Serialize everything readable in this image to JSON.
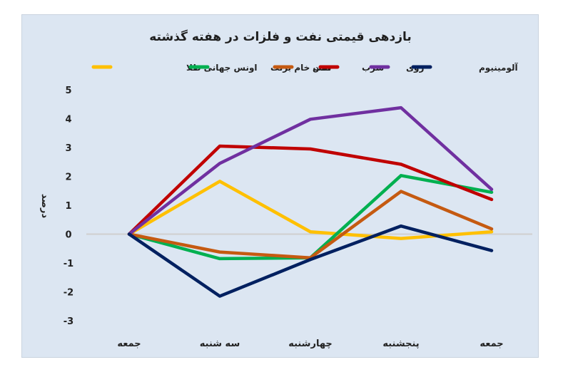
{
  "chart_data": {
    "type": "line",
    "title": "بازدهی قیمتی نفت و فلزات در هفته گذشته",
    "ylabel": "درصد",
    "xlabel": "",
    "categories": [
      "جمعه",
      "سه شنبه",
      "چهارشنبه",
      "پنجشنبه",
      "جمعه"
    ],
    "ylim": [
      -3,
      5
    ],
    "yticks": [
      {
        "value": 5,
        "label": "5"
      },
      {
        "value": 4,
        "label": "4"
      },
      {
        "value": 3,
        "label": "3"
      },
      {
        "value": 2,
        "label": "2"
      },
      {
        "value": 1,
        "label": "1"
      },
      {
        "value": 0,
        "label": "0"
      },
      {
        "value": -1,
        "label": "-1"
      },
      {
        "value": -2,
        "label": "-2"
      },
      {
        "value": -3,
        "label": "-3"
      }
    ],
    "legend_position": "top",
    "grid": false,
    "series": [
      {
        "name": "اونس جهانی طلا",
        "color": "#ffc000",
        "values": [
          0,
          1.83,
          0.08,
          -0.15,
          0.08
        ]
      },
      {
        "name": "نفت خام برنت",
        "color": "#00b050",
        "values": [
          0,
          -0.85,
          -0.82,
          2.03,
          1.45
        ]
      },
      {
        "name": "مس",
        "color": "#c55a11",
        "values": [
          0,
          -0.62,
          -0.82,
          1.48,
          0.18
        ]
      },
      {
        "name": "سرب",
        "color": "#c00000",
        "values": [
          0,
          3.05,
          2.95,
          2.42,
          1.2
        ]
      },
      {
        "name": "روی",
        "color": "#7030a0",
        "values": [
          0,
          2.45,
          3.98,
          4.38,
          1.55
        ]
      },
      {
        "name": "آلومینیوم",
        "color": "#002060",
        "values": [
          0,
          -2.15,
          -0.88,
          0.28,
          -0.57
        ]
      }
    ]
  }
}
